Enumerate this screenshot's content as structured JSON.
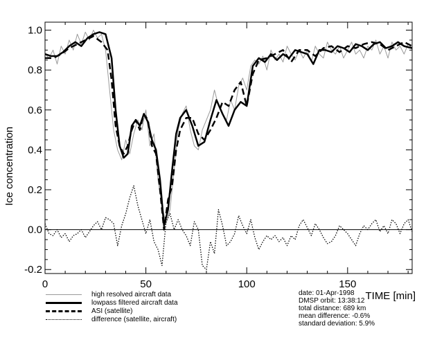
{
  "chart_data": {
    "type": "line",
    "title": "",
    "xlabel": "TIME [min]",
    "ylabel": "Ice concentration",
    "xlim": [
      0,
      182
    ],
    "ylim": [
      -0.22,
      1.04
    ],
    "x_ticks": [
      0,
      50,
      100,
      150
    ],
    "x_tick_labels": [
      "0",
      "50",
      "100",
      "150"
    ],
    "y_ticks": [
      -0.2,
      0.0,
      0.2,
      0.4,
      0.6,
      0.8,
      1.0
    ],
    "y_tick_labels": [
      "-0.2",
      "0.0",
      "0.2",
      "0.4",
      "0.6",
      "0.8",
      "1.0"
    ],
    "grid": false,
    "reference_line_y": 0.0,
    "series": [
      {
        "name": "high resolved aircraft data",
        "color": "#999999",
        "style": "thin",
        "x": [
          0,
          2,
          4,
          6,
          8,
          10,
          12,
          14,
          16,
          18,
          20,
          22,
          24,
          26,
          28,
          30,
          32,
          34,
          36,
          38,
          40,
          42,
          44,
          46,
          48,
          50,
          52,
          54,
          56,
          58,
          60,
          62,
          64,
          66,
          68,
          70,
          72,
          74,
          76,
          78,
          80,
          82,
          84,
          86,
          88,
          90,
          92,
          94,
          96,
          98,
          100,
          102,
          104,
          106,
          108,
          110,
          112,
          114,
          116,
          118,
          120,
          122,
          124,
          126,
          128,
          130,
          132,
          134,
          136,
          138,
          140,
          142,
          144,
          146,
          148,
          150,
          152,
          154,
          156,
          158,
          160,
          162,
          164,
          166,
          168,
          170,
          172,
          174,
          176,
          178,
          180,
          182
        ],
        "y": [
          0.88,
          0.86,
          0.9,
          0.83,
          0.92,
          0.88,
          0.95,
          0.9,
          0.98,
          0.93,
          0.99,
          0.95,
          1.0,
          0.96,
          0.98,
          0.9,
          0.7,
          0.5,
          0.4,
          0.35,
          0.45,
          0.38,
          0.48,
          0.55,
          0.5,
          0.6,
          0.42,
          0.48,
          0.25,
          0.12,
          0.03,
          0.1,
          0.3,
          0.5,
          0.58,
          0.62,
          0.5,
          0.42,
          0.4,
          0.5,
          0.55,
          0.6,
          0.7,
          0.62,
          0.58,
          0.55,
          0.65,
          0.6,
          0.72,
          0.76,
          0.7,
          0.82,
          0.85,
          0.83,
          0.87,
          0.8,
          0.9,
          0.85,
          0.88,
          0.84,
          0.92,
          0.88,
          0.85,
          0.9,
          0.86,
          0.9,
          0.84,
          0.92,
          0.88,
          0.86,
          0.94,
          0.9,
          0.88,
          0.92,
          0.86,
          0.9,
          0.94,
          0.88,
          0.9,
          0.86,
          0.92,
          0.9,
          0.95,
          0.88,
          0.92,
          0.86,
          0.94,
          0.9,
          0.92,
          0.88,
          0.93,
          0.91
        ]
      },
      {
        "name": "lowpass filtered aircraft data",
        "color": "#000000",
        "style": "thick",
        "x": [
          0,
          3,
          6,
          9,
          12,
          15,
          18,
          21,
          24,
          27,
          30,
          33,
          35,
          37,
          39,
          41,
          43,
          45,
          47,
          49,
          51,
          53,
          55,
          57,
          59,
          61,
          63,
          65,
          67,
          70,
          73,
          76,
          79,
          82,
          85,
          88,
          91,
          94,
          97,
          100,
          103,
          106,
          109,
          112,
          115,
          118,
          121,
          124,
          127,
          130,
          133,
          136,
          139,
          142,
          145,
          148,
          151,
          154,
          157,
          160,
          163,
          166,
          169,
          172,
          175,
          178,
          182
        ],
        "y": [
          0.88,
          0.87,
          0.87,
          0.89,
          0.92,
          0.94,
          0.92,
          0.96,
          0.98,
          0.99,
          0.98,
          0.86,
          0.6,
          0.42,
          0.36,
          0.38,
          0.52,
          0.55,
          0.52,
          0.58,
          0.54,
          0.45,
          0.4,
          0.25,
          0.02,
          0.1,
          0.3,
          0.48,
          0.56,
          0.6,
          0.52,
          0.42,
          0.44,
          0.55,
          0.65,
          0.58,
          0.52,
          0.6,
          0.64,
          0.62,
          0.82,
          0.86,
          0.84,
          0.88,
          0.85,
          0.88,
          0.86,
          0.9,
          0.89,
          0.88,
          0.83,
          0.9,
          0.9,
          0.89,
          0.92,
          0.91,
          0.89,
          0.93,
          0.92,
          0.9,
          0.93,
          0.94,
          0.91,
          0.92,
          0.94,
          0.92,
          0.91
        ]
      },
      {
        "name": "ASI (satellite)",
        "color": "#000000",
        "style": "dashed",
        "x": [
          0,
          4,
          8,
          12,
          16,
          20,
          24,
          28,
          31,
          33,
          35,
          37,
          39,
          41,
          43,
          45,
          47,
          49,
          51,
          53,
          55,
          57,
          59,
          61,
          63,
          65,
          67,
          70,
          73,
          76,
          79,
          82,
          85,
          88,
          91,
          94,
          97,
          100,
          103,
          106,
          110,
          114,
          118,
          122,
          126,
          130,
          134,
          138,
          142,
          146,
          150,
          154,
          158,
          162,
          166,
          170,
          174,
          178,
          182
        ],
        "y": [
          0.86,
          0.86,
          0.88,
          0.91,
          0.93,
          0.95,
          0.97,
          0.94,
          0.9,
          0.75,
          0.52,
          0.42,
          0.38,
          0.42,
          0.5,
          0.55,
          0.5,
          0.58,
          0.55,
          0.42,
          0.38,
          0.2,
          0.0,
          0.15,
          0.22,
          0.4,
          0.5,
          0.56,
          0.56,
          0.48,
          0.45,
          0.5,
          0.56,
          0.64,
          0.62,
          0.7,
          0.74,
          0.62,
          0.78,
          0.85,
          0.86,
          0.88,
          0.9,
          0.84,
          0.9,
          0.9,
          0.87,
          0.91,
          0.92,
          0.89,
          0.92,
          0.91,
          0.93,
          0.94,
          0.93,
          0.9,
          0.92,
          0.94,
          0.92
        ]
      },
      {
        "name": "difference (satellite, aircraft)",
        "color": "#000000",
        "style": "dotted",
        "x": [
          0,
          2,
          4,
          6,
          8,
          10,
          12,
          14,
          16,
          18,
          20,
          22,
          24,
          26,
          28,
          30,
          32,
          34,
          36,
          38,
          40,
          42,
          44,
          46,
          48,
          50,
          52,
          54,
          56,
          58,
          60,
          62,
          64,
          66,
          68,
          70,
          72,
          74,
          76,
          78,
          80,
          82,
          84,
          86,
          88,
          90,
          92,
          94,
          96,
          98,
          100,
          102,
          104,
          106,
          108,
          110,
          112,
          114,
          116,
          118,
          120,
          122,
          124,
          126,
          128,
          130,
          132,
          134,
          136,
          138,
          140,
          142,
          144,
          146,
          148,
          150,
          152,
          154,
          156,
          158,
          160,
          162,
          164,
          166,
          168,
          170,
          172,
          174,
          176,
          178,
          180,
          182
        ],
        "y": [
          0.03,
          -0.02,
          -0.03,
          0.0,
          -0.04,
          -0.02,
          -0.06,
          -0.03,
          -0.02,
          0.0,
          -0.04,
          -0.01,
          0.02,
          0.04,
          0.0,
          0.06,
          0.05,
          0.03,
          -0.08,
          0.02,
          0.08,
          0.16,
          0.22,
          0.12,
          0.05,
          -0.02,
          0.05,
          -0.06,
          -0.1,
          -0.18,
          0.04,
          0.08,
          0.0,
          0.05,
          0.0,
          -0.03,
          -0.08,
          0.04,
          0.0,
          -0.18,
          -0.2,
          -0.06,
          -0.12,
          0.1,
          0.02,
          -0.08,
          -0.06,
          -0.02,
          0.07,
          0.02,
          -0.02,
          0.05,
          -0.04,
          -0.1,
          -0.06,
          -0.03,
          -0.05,
          -0.03,
          -0.06,
          -0.04,
          -0.08,
          -0.03,
          -0.05,
          0.02,
          0.05,
          0.01,
          -0.03,
          0.03,
          0.0,
          -0.04,
          -0.07,
          -0.06,
          -0.03,
          0.02,
          0.0,
          -0.02,
          -0.05,
          -0.08,
          -0.02,
          0.02,
          0.0,
          0.03,
          0.05,
          -0.01,
          0.02,
          -0.02,
          0.05,
          0.03,
          -0.02,
          0.03,
          0.05,
          -0.01
        ]
      }
    ]
  },
  "legend": {
    "items": [
      {
        "label": "high resolved aircraft data",
        "color": "#999999",
        "style": "thin"
      },
      {
        "label": "lowpass filtered aircraft data",
        "color": "#000000",
        "style": "thick"
      },
      {
        "label": "ASI (satellite)",
        "color": "#000000",
        "style": "dashed"
      },
      {
        "label": "difference (satellite, aircraft)",
        "color": "#000000",
        "style": "dotted"
      }
    ]
  },
  "info": {
    "lines": [
      "date: 01-Apr-1998",
      "DMSP orbit: 13:38:12",
      "total distance: 689 km",
      "mean  difference: -0.6%",
      "standard deviation: 5.9%"
    ]
  }
}
